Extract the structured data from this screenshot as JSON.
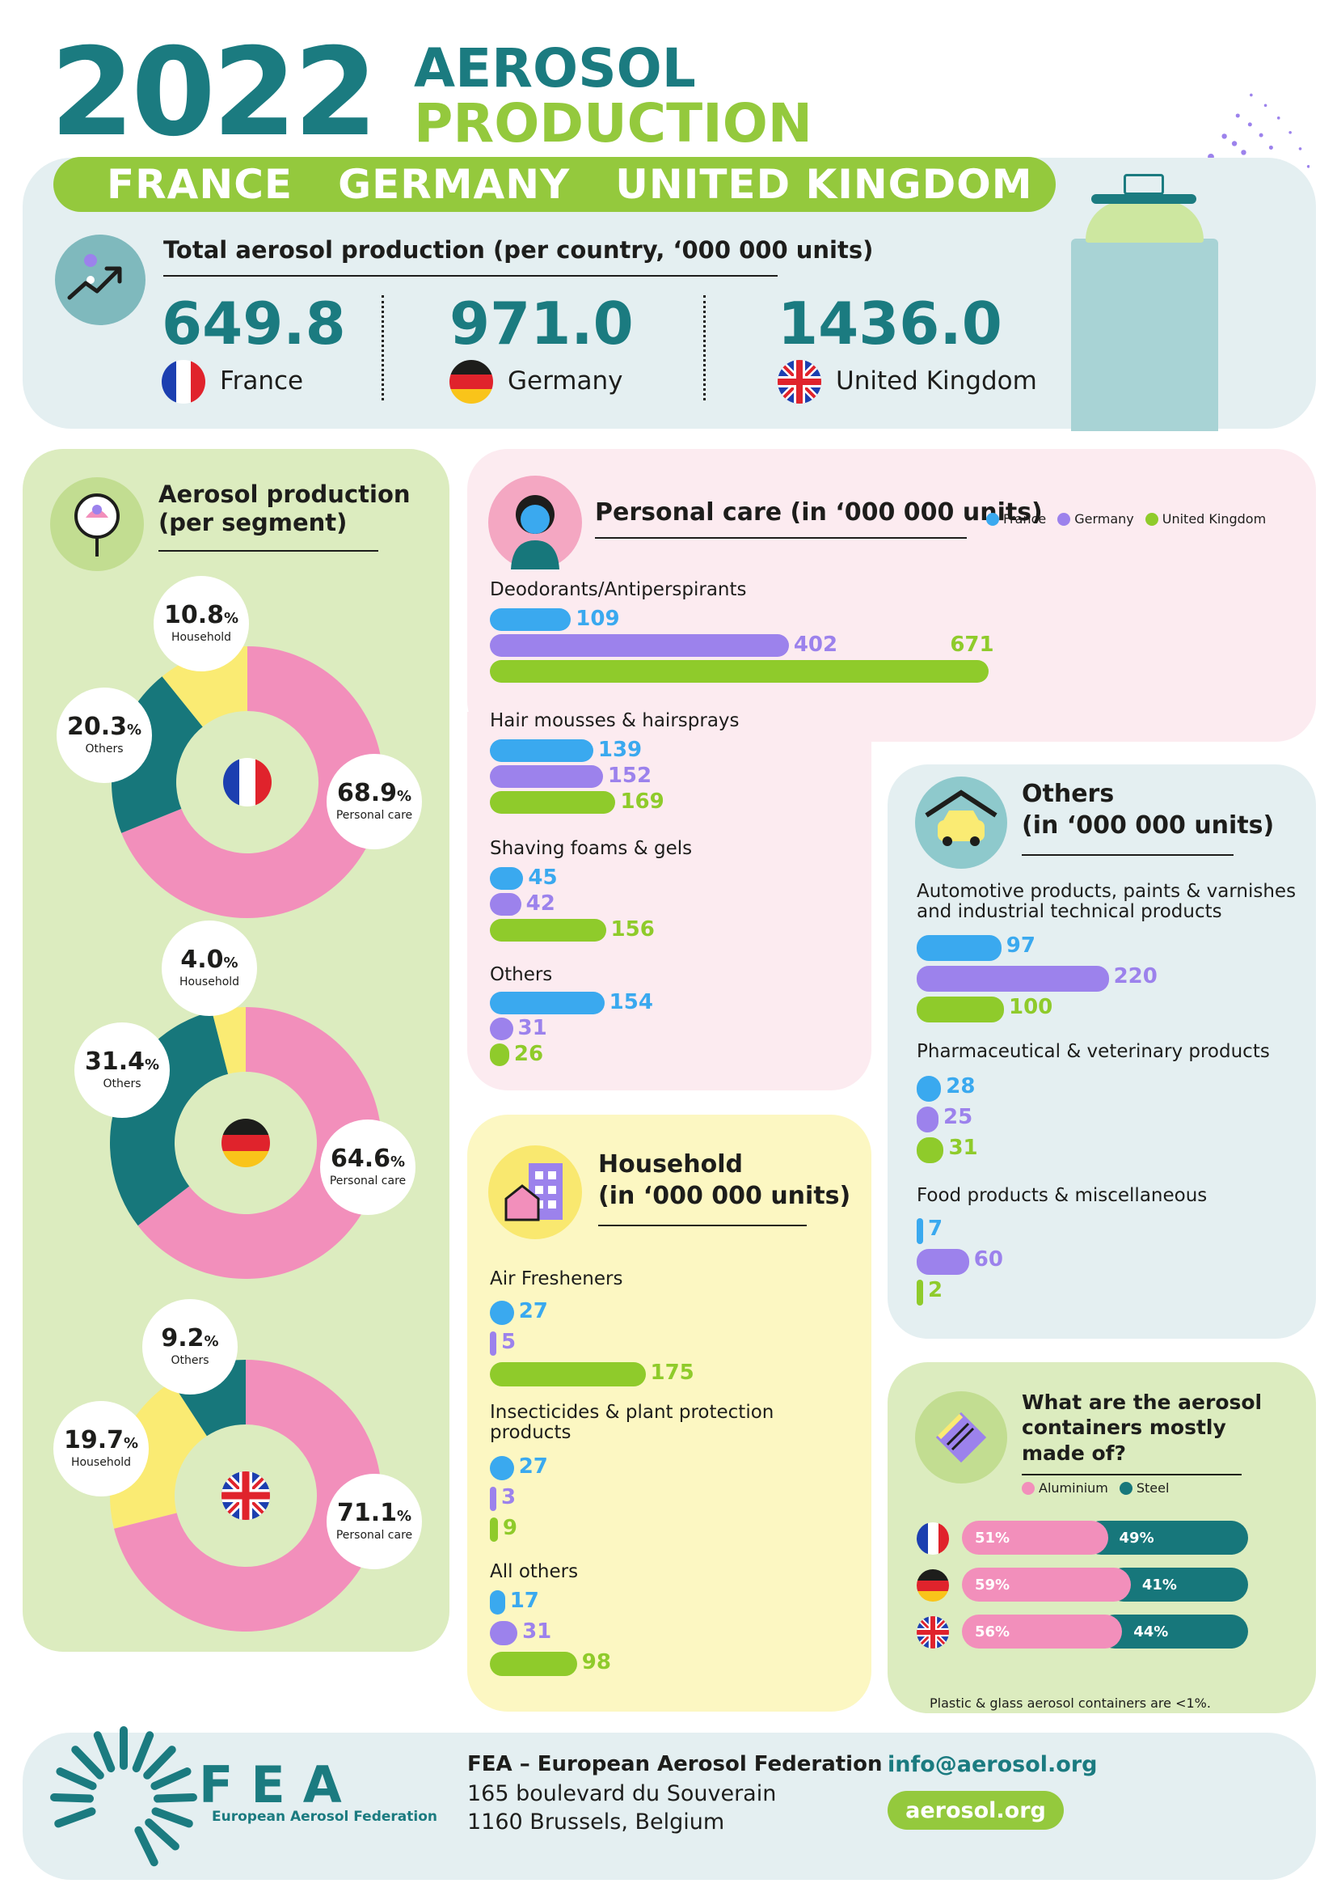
{
  "header": {
    "year": "2022",
    "title_line1": "AEROSOL",
    "title_line2": "PRODUCTION",
    "countries": [
      "FRANCE",
      "GERMANY",
      "UNITED KINGDOM"
    ]
  },
  "totals": {
    "title": "Total aerosol production (per country, ‘000  000 units)",
    "items": [
      {
        "value": "649.8",
        "country": "France"
      },
      {
        "value": "971.0",
        "country": "Germany"
      },
      {
        "value": "1436.0",
        "country": "United Kingdom"
      }
    ]
  },
  "segment": {
    "title_line1": "Aerosol production",
    "title_line2": "(per segment)",
    "donuts": [
      {
        "country": "France",
        "slices": [
          {
            "label": "Personal care",
            "value": 68.9,
            "pct_text": "68.9",
            "color": "#f28fbb"
          },
          {
            "label": "Others",
            "value": 20.3,
            "pct_text": "20.3",
            "color": "#17777b"
          },
          {
            "label": "Household",
            "value": 10.8,
            "pct_text": "10.8",
            "color": "#faeb73"
          }
        ]
      },
      {
        "country": "Germany",
        "slices": [
          {
            "label": "Personal care",
            "value": 64.6,
            "pct_text": "64.6",
            "color": "#f28fbb"
          },
          {
            "label": "Others",
            "value": 31.4,
            "pct_text": "31.4",
            "color": "#17777b"
          },
          {
            "label": "Household",
            "value": 4.0,
            "pct_text": "4.0",
            "color": "#faeb73"
          }
        ]
      },
      {
        "country": "United Kingdom",
        "slices": [
          {
            "label": "Personal care",
            "value": 71.1,
            "pct_text": "71.1",
            "color": "#f28fbb"
          },
          {
            "label": "Household",
            "value": 19.7,
            "pct_text": "19.7",
            "color": "#faeb73"
          },
          {
            "label": "Others",
            "value": 9.2,
            "pct_text": "9.2",
            "color": "#17777b"
          }
        ]
      }
    ],
    "percent_sign": "%"
  },
  "legend": {
    "france": "France",
    "germany": "Germany",
    "uk": "United Kingdom"
  },
  "colors": {
    "france": "#3aa9ef",
    "germany": "#9c82ec",
    "uk": "#8fcb2b",
    "aluminium": "#f28fbb",
    "steel": "#17777b",
    "teal": "#1b7b80",
    "green": "#94c93d"
  },
  "chart_data": [
    {
      "type": "bar",
      "title": "Personal care (in ‘000 000 units)",
      "categories": [
        "Deodorants/Antiperspirants",
        "Hair mousses & hairsprays",
        "Shaving foams & gels",
        "Others"
      ],
      "series": [
        {
          "name": "France",
          "values": [
            109,
            139,
            45,
            154
          ]
        },
        {
          "name": "Germany",
          "values": [
            402,
            152,
            42,
            31
          ]
        },
        {
          "name": "United Kingdom",
          "values": [
            671,
            169,
            156,
            26
          ]
        }
      ]
    },
    {
      "type": "bar",
      "title_line1": "Household",
      "title_line2": "(in ‘000 000 units)",
      "categories": [
        "Air Fresheners",
        "Insecticides & plant protection products",
        "All others"
      ],
      "series": [
        {
          "name": "France",
          "values": [
            27,
            27,
            17
          ]
        },
        {
          "name": "Germany",
          "values": [
            5,
            3,
            31
          ]
        },
        {
          "name": "United Kingdom",
          "values": [
            175,
            9,
            98
          ]
        }
      ]
    },
    {
      "type": "bar",
      "title_line1": "Others",
      "title_line2": "(in ‘000 000 units)",
      "categories": [
        "Automotive products, paints & varnishes and industrial technical products",
        "Pharmaceutical & veterinary products",
        "Food products & miscellaneous"
      ],
      "series": [
        {
          "name": "France",
          "values": [
            97,
            28,
            7
          ]
        },
        {
          "name": "Germany",
          "values": [
            220,
            25,
            60
          ]
        },
        {
          "name": "United Kingdom",
          "values": [
            100,
            31,
            2
          ]
        }
      ]
    },
    {
      "type": "bar",
      "title": "What are the aerosol containers mostly made of?",
      "categories": [
        "France",
        "Germany",
        "United Kingdom"
      ],
      "series": [
        {
          "name": "Aluminium",
          "values": [
            51,
            59,
            56
          ]
        },
        {
          "name": "Steel",
          "values": [
            49,
            41,
            44
          ]
        }
      ]
    }
  ],
  "containers": {
    "title": "What are the aerosol containers mostly made of?",
    "legend_aluminium": "Aluminium",
    "legend_steel": "Steel",
    "note": "Plastic & glass aerosol containers are <1%."
  },
  "footer": {
    "logo": "FEA",
    "logo_sub": "European Aerosol Federation",
    "org": "FEA – European Aerosol Federation",
    "address1": "165 boulevard du Souverain",
    "address2": "1160 Brussels, Belgium",
    "email": "info@aerosol.org",
    "website": "aerosol.org"
  }
}
